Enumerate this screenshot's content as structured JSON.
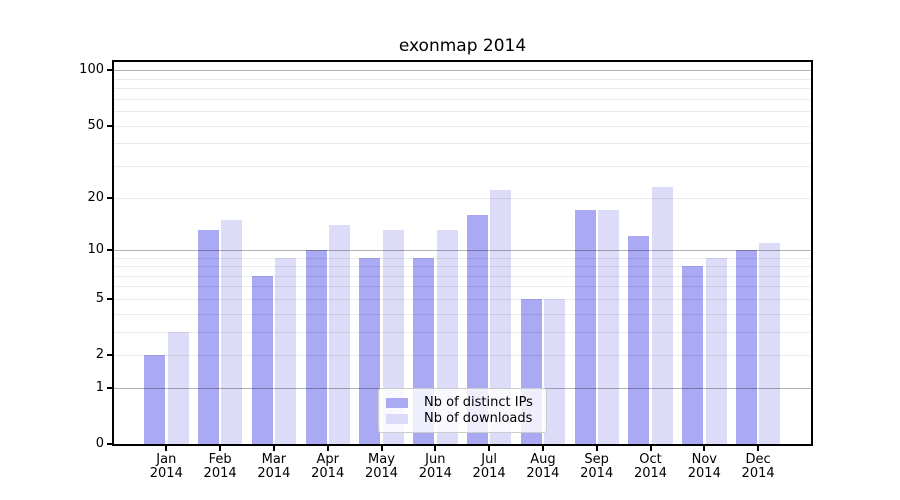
{
  "chart_data": {
    "type": "bar",
    "title": "exonmap 2014",
    "categories": [
      "Jan",
      "Feb",
      "Mar",
      "Apr",
      "May",
      "Jun",
      "Jul",
      "Aug",
      "Sep",
      "Oct",
      "Nov",
      "Dec"
    ],
    "x_sublabel": "2014",
    "series": [
      {
        "name": "Nb of distinct IPs",
        "color": "#a9a9f4",
        "values": [
          2,
          13,
          7,
          10,
          9,
          9,
          16,
          5,
          17,
          12,
          8,
          10
        ]
      },
      {
        "name": "Nb of downloads",
        "color": "#dcdcf9",
        "values": [
          3,
          15,
          9,
          14,
          13,
          13,
          22,
          5,
          17,
          23,
          9,
          11
        ]
      }
    ],
    "yscale": "log1p",
    "ylim": [
      0,
      111
    ],
    "ytick_values": [
      100,
      50,
      20,
      10,
      5,
      2,
      1,
      0
    ],
    "ytick_labels": [
      "100",
      "50",
      "20",
      "10",
      "5",
      "2",
      "1",
      "0"
    ],
    "major_gridline_values": [
      1,
      10,
      100
    ],
    "minor_gridline_values": [
      2,
      3,
      4,
      5,
      6,
      7,
      8,
      9,
      20,
      30,
      40,
      50,
      60,
      70,
      80,
      90
    ],
    "grid": true,
    "legend_position": "lower-center",
    "xlabel": "",
    "ylabel": ""
  },
  "colors": {
    "major_grid": "rgba(0,0,0,0.30)",
    "minor_grid": "rgba(0,0,0,0.08)",
    "spine": "#000000",
    "text": "#000000",
    "legend_border": "#cccccc",
    "legend_background": "rgba(255,255,255,0.8)"
  }
}
